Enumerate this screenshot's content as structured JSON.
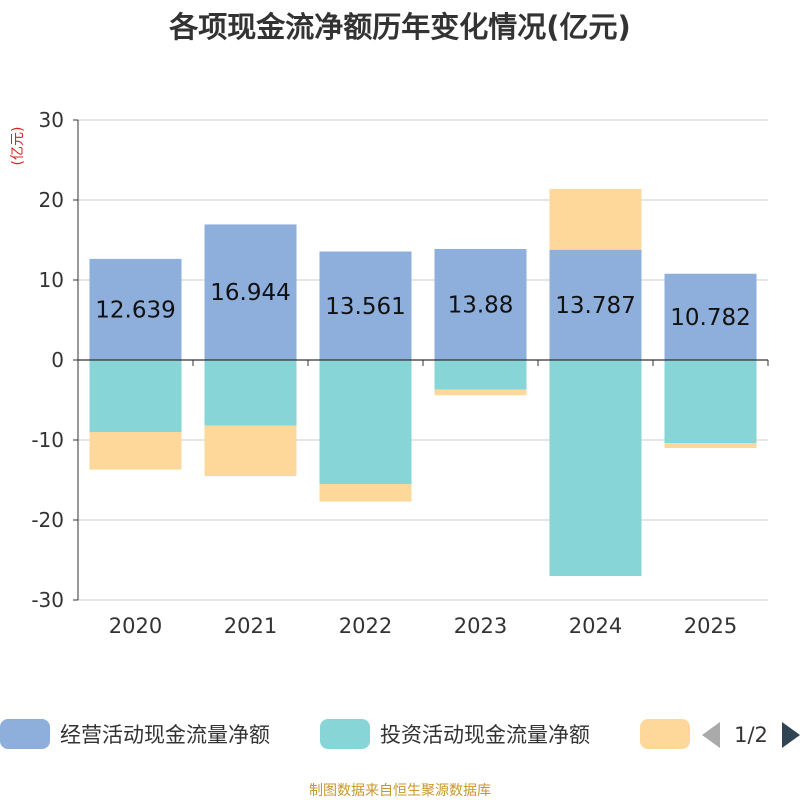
{
  "chart_data": {
    "type": "bar",
    "stacked": true,
    "title": "各项现金流净额历年变化情况(亿元)",
    "ylabel": "(亿元)",
    "xlabel": "",
    "categories": [
      "2020",
      "2021",
      "2022",
      "2023",
      "2024",
      "2025"
    ],
    "ylim": [
      -30,
      30
    ],
    "yticks": [
      30,
      20,
      10,
      0,
      -10,
      -20,
      -30
    ],
    "grid": true,
    "series": [
      {
        "name": "经营活动现金流量净额",
        "color": "#8eaedb",
        "values": [
          12.639,
          16.944,
          13.561,
          13.88,
          13.787,
          10.782
        ],
        "labels": [
          "12.639",
          "16.944",
          "13.561",
          "13.88",
          "13.787",
          "10.782"
        ]
      },
      {
        "name": "投资活动现金流量净额",
        "color": "#87d5d7",
        "values": [
          -9.0,
          -8.2,
          -15.5,
          -3.7,
          -27.0,
          -10.4
        ]
      },
      {
        "name": "",
        "color": "#fdd89a",
        "values": [
          -4.7,
          -6.3,
          -2.2,
          -0.7,
          7.6,
          -0.6
        ]
      }
    ],
    "legend_position": "bottom",
    "legend_page": "1/2"
  },
  "source": "制图数据来自恒生聚源数据库",
  "colors": {
    "title": "#333333",
    "axis": "#333333",
    "grid": "#cccccc",
    "ylabel": "#e02020",
    "source": "#c9962a",
    "pager": "#2f4554",
    "pager_inactive": "#aaaaaa"
  }
}
